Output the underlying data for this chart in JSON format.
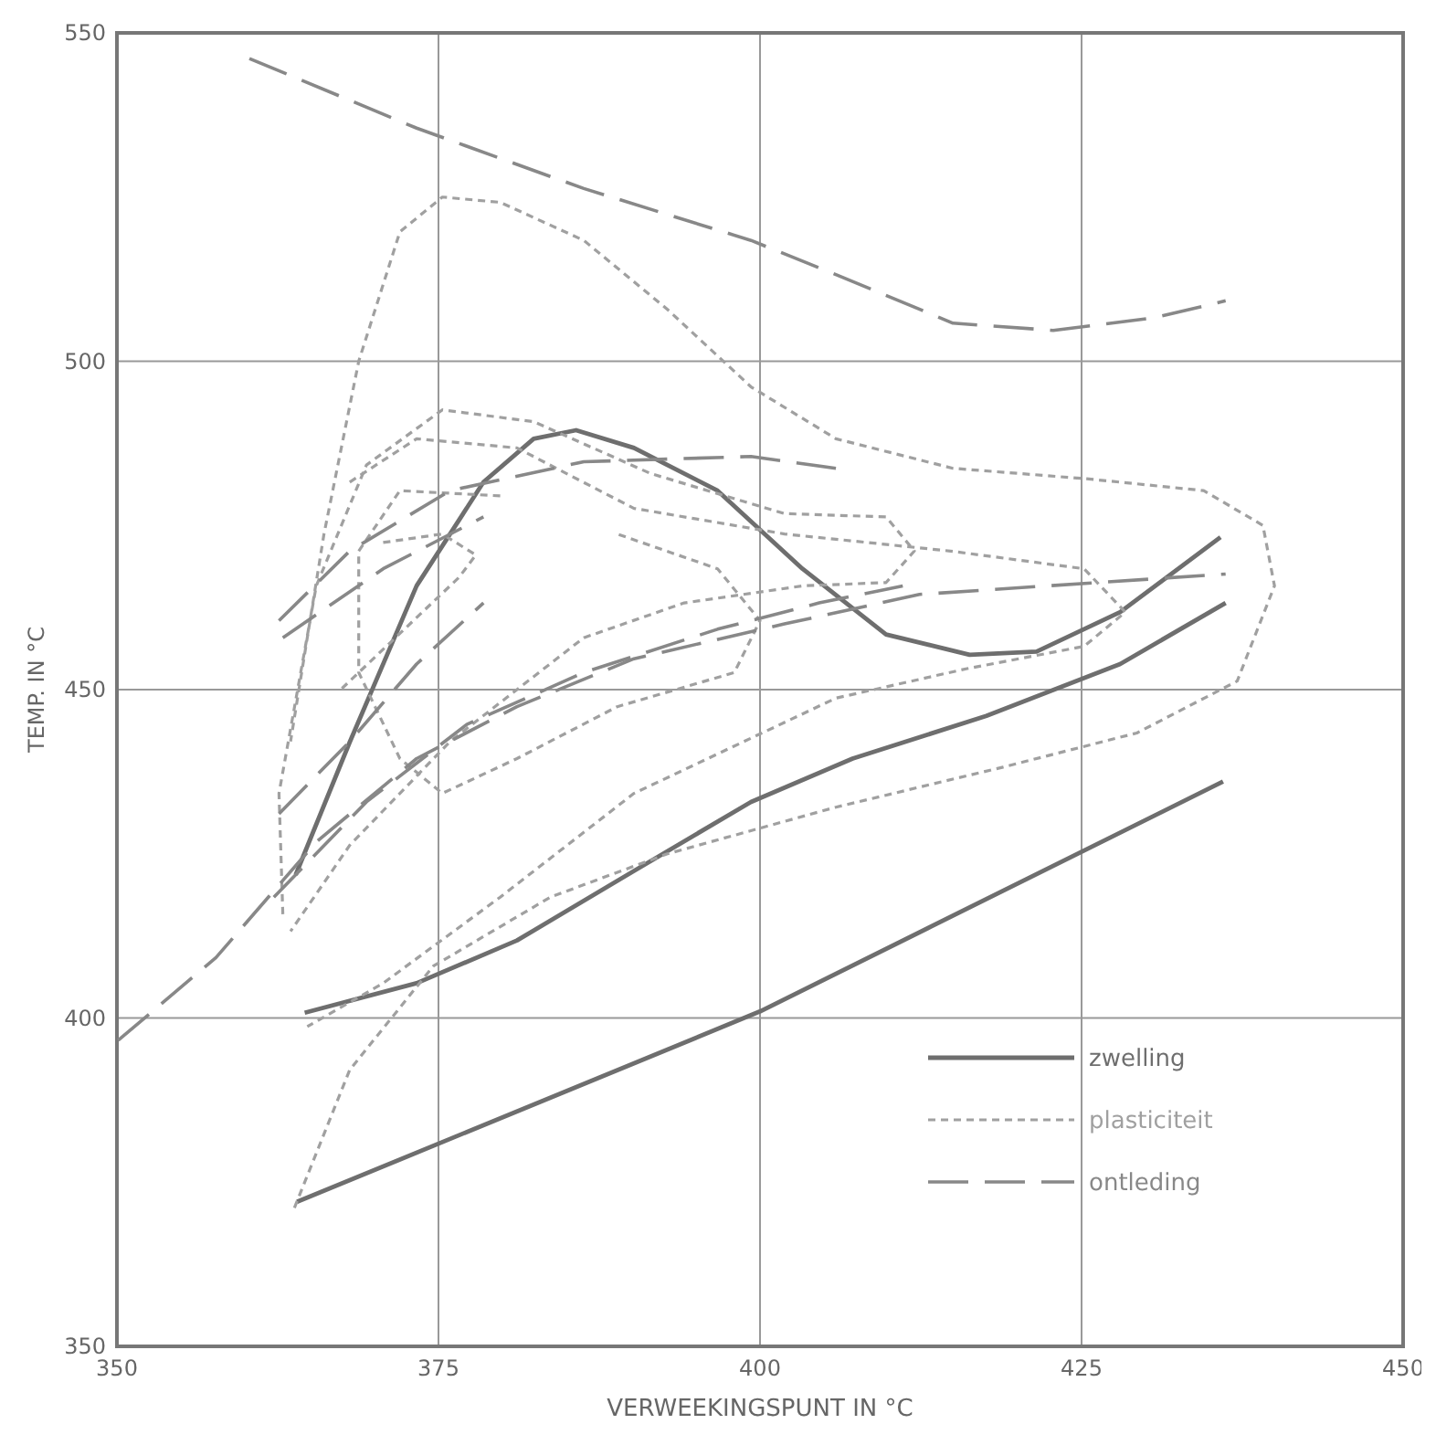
{
  "chart_data": {
    "type": "line",
    "xlabel": "VERWEEKINGSPUNT IN °C",
    "ylabel": "TEMP. IN °C",
    "xlim": [
      350,
      450
    ],
    "xticks": [
      350,
      375,
      400,
      425,
      450
    ],
    "ylim": [
      350,
      550
    ],
    "yticks": [
      350,
      400,
      450,
      500,
      550
    ],
    "grid": true,
    "legend": "bottom right",
    "marker": "none",
    "series": [
      {
        "name": "zwelling",
        "color": "#6e6e6e",
        "line_style": "solid",
        "x": [
          364,
          400,
          436
        ],
        "values": [
          372,
          401,
          436
        ]
      },
      {
        "color": "#6e6e6e",
        "line_style": "solid",
        "x": [
          363.9,
          368.1,
          373.3,
          378.5,
          382.4,
          385.7,
          390.2,
          396.7,
          403.3,
          409.8,
          416.3,
          421.5,
          428,
          435.8
        ],
        "values": [
          421.8,
          442,
          465.8,
          481.6,
          488.2,
          489.5,
          486.8,
          480.3,
          468.4,
          458.4,
          455.3,
          455.8,
          461.8,
          473.2
        ]
      },
      {
        "color": "#6e6e6e",
        "line_style": "solid",
        "x": [
          364.6,
          373.3,
          381.1,
          390.2,
          399.3,
          407.2,
          417.6,
          428,
          436.2
        ],
        "values": [
          400.8,
          405.3,
          411.8,
          422.4,
          432.9,
          439.5,
          446,
          453.9,
          463.2
        ]
      },
      {
        "name": "plasticiteit",
        "color": "#a0a0a0",
        "line_style": "dotted",
        "x": [
          363.8,
          368.1,
          374.6,
          383.7,
          392.8,
          405.9,
          418.9,
          429.3,
          437.1,
          440,
          439.1,
          434.5,
          425.4,
          415,
          405.9,
          399.3,
          392.8,
          386.3,
          379.8,
          375.3,
          372,
          368.8,
          366.1,
          363.5
        ],
        "values": [
          371.1,
          392.1,
          407.9,
          418.4,
          425,
          432.1,
          438.2,
          443.4,
          451.3,
          465.8,
          475,
          480.3,
          482.1,
          483.7,
          488.2,
          496.1,
          507.9,
          518.4,
          524.2,
          525,
          519.7,
          500,
          473.7,
          442.1
        ]
      },
      {
        "color": "#a0a0a0",
        "line_style": "dotted",
        "x": [
          362.9,
          362.6,
          365.5,
          369.4,
          375.3,
          382.4,
          391.5,
          401.9,
          409.8,
          412,
          409.8,
          403.3,
          394.1,
          386.3,
          375.9,
          368.1,
          363.5
        ],
        "values": [
          415.8,
          434.2,
          465.8,
          484.2,
          492.6,
          490.8,
          482.9,
          476.8,
          476.3,
          471.1,
          466.3,
          465.8,
          463.2,
          457.9,
          442.1,
          426.3,
          413.2
        ]
      },
      {
        "color": "#a0a0a0",
        "line_style": "dotted",
        "x": [
          368.1,
          373.3,
          381.1,
          390.2,
          401.9,
          414.8,
          425.2,
          428.4,
          425.2,
          416.1,
          405.9,
          390.2,
          379.8,
          370.7,
          364.8
        ],
        "values": [
          481.6,
          488.2,
          486.8,
          477.6,
          473.7,
          471.1,
          468.4,
          461.8,
          456.6,
          453.2,
          448.7,
          434.2,
          418.4,
          405.3,
          398.7
        ]
      },
      {
        "color": "#a0a0a0",
        "line_style": "dotted",
        "x": [
          379.8,
          372,
          368.8,
          368.8,
          372,
          375.3,
          381.1,
          388.9,
          398,
          400,
          396.7,
          388.9
        ],
        "values": [
          479.5,
          480.3,
          471.1,
          452.6,
          439.5,
          434.2,
          439.5,
          447.4,
          452.6,
          460.5,
          468.4,
          473.7
        ]
      },
      {
        "color": "#a0a0a0",
        "line_style": "dotted",
        "x": [
          370.7,
          375.3,
          377.9,
          376.6,
          367.4
        ],
        "values": [
          472.4,
          473.7,
          470.5,
          467.1,
          450
        ]
      },
      {
        "name": "ontleding",
        "color": "#888888",
        "line_style": "dashed",
        "x": [
          360.3,
          373.3,
          386.3,
          399.3,
          405.9,
          415,
          422.8,
          430.6,
          436.2
        ],
        "values": [
          546.1,
          535.5,
          526.3,
          518.4,
          513.2,
          505.8,
          504.7,
          506.6,
          509.2
        ]
      },
      {
        "color": "#888888",
        "line_style": "dashed",
        "x": [
          350.1,
          357.7,
          365.5,
          373.3,
          381.1,
          390.2,
          401.9,
          412.4,
          436.2
        ],
        "values": [
          396.6,
          409.2,
          426.8,
          439.5,
          447.4,
          454.7,
          460,
          464.5,
          467.6
        ]
      },
      {
        "color": "#888888",
        "line_style": "dashed",
        "x": [
          362.2,
          369.4,
          377.2,
          386.3,
          396.7,
          404.6,
          411.1
        ],
        "values": [
          418.4,
          432.9,
          444.7,
          452.6,
          459.2,
          463.2,
          465.8
        ]
      },
      {
        "color": "#888888",
        "line_style": "dashed",
        "x": [
          362.6,
          368.1,
          373.3,
          378.5
        ],
        "values": [
          431.1,
          442.1,
          453.9,
          463.2
        ]
      },
      {
        "color": "#888888",
        "line_style": "dashed",
        "x": [
          362.6,
          368.1,
          375.9,
          386.3,
          399.3,
          405.9
        ],
        "values": [
          460.5,
          471.1,
          480.3,
          484.7,
          485.5,
          483.7
        ]
      },
      {
        "color": "#888888",
        "line_style": "dashed",
        "x": [
          362.9,
          370.7,
          378.5
        ],
        "values": [
          457.9,
          468.4,
          476.3
        ]
      }
    ]
  }
}
